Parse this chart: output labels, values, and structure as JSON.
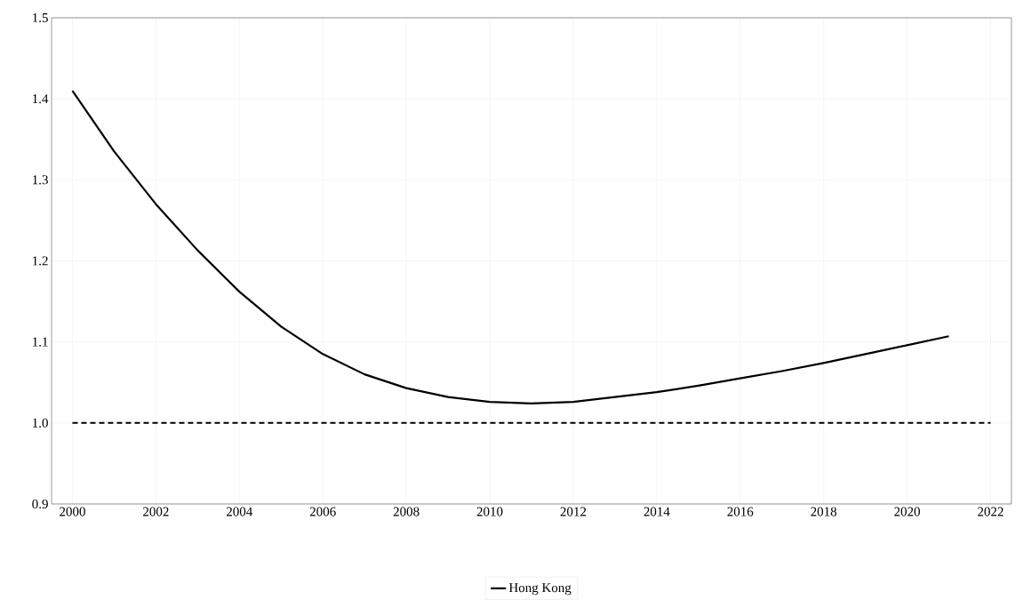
{
  "chart_data": {
    "type": "line",
    "x": [
      2000,
      2001,
      2002,
      2003,
      2004,
      2005,
      2006,
      2007,
      2008,
      2009,
      2010,
      2011,
      2012,
      2013,
      2014,
      2015,
      2016,
      2017,
      2018,
      2019,
      2020,
      2021
    ],
    "series": [
      {
        "name": "Hong Kong",
        "color": "#000000",
        "values": [
          1.41,
          1.335,
          1.27,
          1.213,
          1.162,
          1.119,
          1.085,
          1.06,
          1.043,
          1.032,
          1.026,
          1.024,
          1.026,
          1.032,
          1.038,
          1.046,
          1.055,
          1.064,
          1.074,
          1.085,
          1.096,
          1.107
        ]
      }
    ],
    "xlim": [
      1999.5,
      2022.5
    ],
    "xticks": [
      2000,
      2002,
      2004,
      2006,
      2008,
      2010,
      2012,
      2014,
      2016,
      2018,
      2020,
      2022
    ],
    "ylim": [
      0.9,
      1.5
    ],
    "yticks": [
      0.9,
      {
        "value": 1.0,
        "label": "1.0"
      },
      1.1,
      1.2,
      1.3,
      1.4,
      1.5
    ],
    "ref_lines": [
      {
        "axis": "y",
        "value": 1.0,
        "color": "#000000",
        "line_style": "dashed"
      }
    ],
    "grid": true,
    "legend": "bottom",
    "marker": "none",
    "line_style": "solid"
  }
}
